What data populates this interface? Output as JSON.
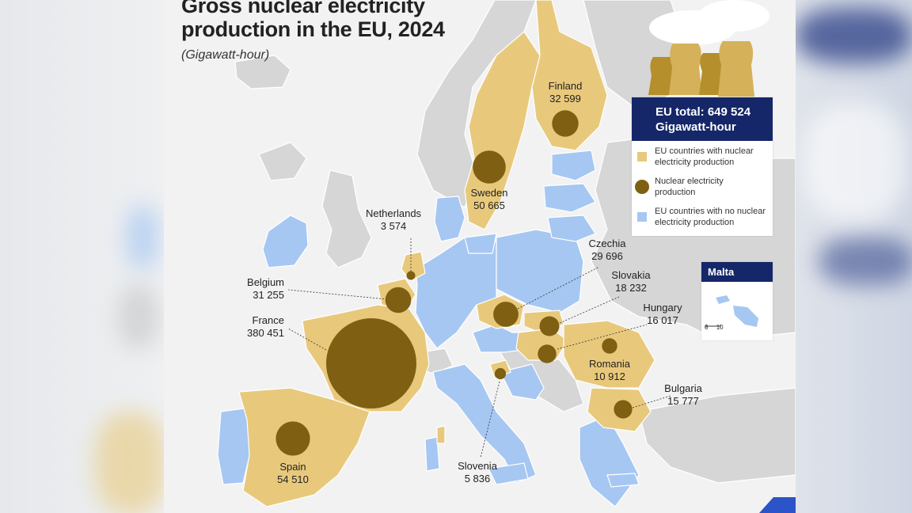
{
  "title_line1": "Gross nuclear electricity",
  "title_line2": "production in the EU, 2024",
  "subtitle": "(Gigawatt-hour)",
  "eu_total_line1": "EU total: 649 524",
  "eu_total_line2": "Gigawatt-hour",
  "legend": [
    {
      "label": "EU countries with nuclear electricity production",
      "color": "#e8c97c",
      "shape": "square"
    },
    {
      "label": "Nuclear electricity production",
      "color": "#7f5f12",
      "shape": "circle"
    },
    {
      "label": "EU countries with no nuclear electricity production",
      "color": "#a6c7f2",
      "shape": "square"
    }
  ],
  "inset": {
    "title": "Malta",
    "scale_labels": [
      "0",
      "10"
    ]
  },
  "colors": {
    "nuclear": "#e8c97c",
    "bubble": "#7f5f12",
    "no_nuclear": "#a6c7f2",
    "non_eu": "#d6d6d6",
    "sea": "#f2f2f2",
    "header": "#152768"
  },
  "countries": [
    {
      "name": "Finland",
      "value": "32 599",
      "gwh": 32599
    },
    {
      "name": "Sweden",
      "value": "50 665",
      "gwh": 50665
    },
    {
      "name": "Netherlands",
      "value": "3 574",
      "gwh": 3574
    },
    {
      "name": "Belgium",
      "value": "31 255",
      "gwh": 31255
    },
    {
      "name": "France",
      "value": "380 451",
      "gwh": 380451
    },
    {
      "name": "Czechia",
      "value": "29 696",
      "gwh": 29696
    },
    {
      "name": "Slovakia",
      "value": "18 232",
      "gwh": 18232
    },
    {
      "name": "Hungary",
      "value": "16 017",
      "gwh": 16017
    },
    {
      "name": "Romania",
      "value": "10 912",
      "gwh": 10912
    },
    {
      "name": "Bulgaria",
      "value": "15 777",
      "gwh": 15777
    },
    {
      "name": "Slovenia",
      "value": "5 836",
      "gwh": 5836
    },
    {
      "name": "Spain",
      "value": "54 510",
      "gwh": 54510
    }
  ]
}
